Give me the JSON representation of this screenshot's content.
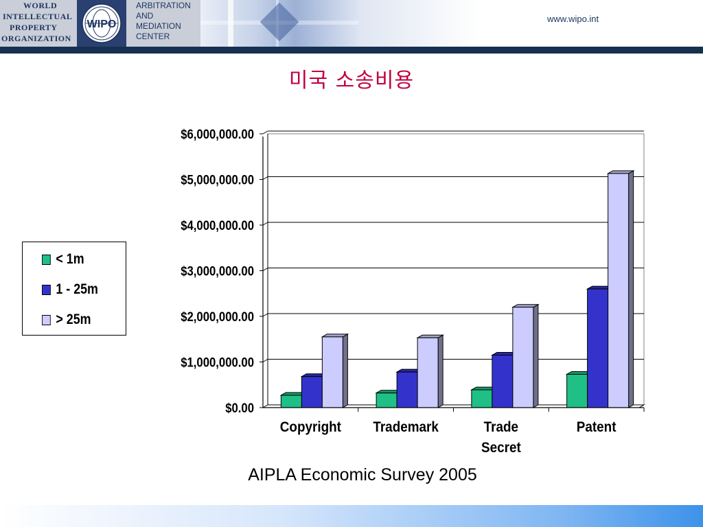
{
  "header": {
    "org_lines": [
      "WORLD",
      "INTELLECTUAL",
      "PROPERTY",
      "ORGANIZATION"
    ],
    "logo_text": "WIPO",
    "center_lines": [
      "ARBITRATION",
      "AND",
      "MEDIATION",
      "CENTER"
    ],
    "url": "www.wipo.int"
  },
  "slide": {
    "title": "미국 소송비용",
    "source": "AIPLA Economic Survey 2005"
  },
  "legend": [
    {
      "label": "< 1m",
      "color": "#1fbf86"
    },
    {
      "label": "1 - 25m",
      "color": "#3333cc"
    },
    {
      "label": "> 25m",
      "color": "#ccccff"
    }
  ],
  "chart_data": {
    "type": "bar",
    "categories": [
      [
        "Copyright"
      ],
      [
        "Trademark"
      ],
      [
        "Trade",
        "Secret"
      ],
      [
        "Patent"
      ]
    ],
    "series": [
      {
        "name": "< 1m",
        "color": "#1fbf86",
        "values": [
          270000,
          320000,
          390000,
          730000
        ]
      },
      {
        "name": "1 - 25m",
        "color": "#3333cc",
        "values": [
          680000,
          780000,
          1150000,
          2600000
        ]
      },
      {
        "name": "> 25m",
        "color": "#ccccff",
        "values": [
          1550000,
          1530000,
          2200000,
          5130000
        ]
      }
    ],
    "ylim": [
      0,
      6000000
    ],
    "y_ticks": [
      "$0.00",
      "$1,000,000.00",
      "$2,000,000.00",
      "$3,000,000.00",
      "$4,000,000.00",
      "$5,000,000.00",
      "$6,000,000.00"
    ],
    "grid": true,
    "legend_position": "left",
    "xlabel": "",
    "ylabel": ""
  }
}
